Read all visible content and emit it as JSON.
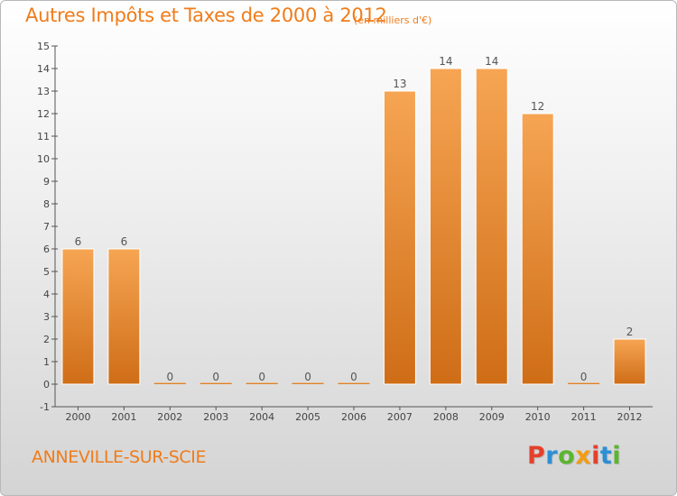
{
  "header": {
    "title": "Autres Impôts et Taxes de 2000 à 2012",
    "subtitle": "(en milliers d'€)"
  },
  "footer": {
    "commune": "ANNEVILLE-SUR-SCIE",
    "brand": "Proxiti",
    "brand_colors": [
      "#e6402b",
      "#2a8fd6",
      "#5ab52f",
      "#f39c12",
      "#e6402b",
      "#2a8fd6",
      "#5ab52f"
    ]
  },
  "colors": {
    "accent": "#f07c1a",
    "bar_top": "#f6a553",
    "bar_bottom": "#cf6d17",
    "axis": "#555555"
  },
  "chart_data": {
    "type": "bar",
    "title": "Autres Impôts et Taxes de 2000 à 2012",
    "subtitle": "(en milliers d'€)",
    "xlabel": "",
    "ylabel": "",
    "categories": [
      "2000",
      "2001",
      "2002",
      "2003",
      "2004",
      "2005",
      "2006",
      "2007",
      "2008",
      "2009",
      "2010",
      "2011",
      "2012"
    ],
    "values": [
      6,
      6,
      0,
      0,
      0,
      0,
      0,
      13,
      14,
      14,
      12,
      0,
      2
    ],
    "data_labels": [
      "6",
      "6",
      "0",
      "0",
      "0",
      "0",
      "0",
      "13",
      "14",
      "14",
      "12",
      "0",
      "2"
    ],
    "ylim": [
      -1,
      15
    ],
    "yticks": [
      -1,
      0,
      1,
      2,
      3,
      4,
      5,
      6,
      7,
      8,
      9,
      10,
      11,
      12,
      13,
      14,
      15
    ],
    "ytick_labels": [
      "-1",
      "0",
      "1",
      "2",
      "3",
      "4",
      "5",
      "6",
      "7",
      "8",
      "9",
      "10",
      "11",
      "12",
      "13",
      "14",
      "15"
    ],
    "grid": false,
    "legend": "none"
  }
}
